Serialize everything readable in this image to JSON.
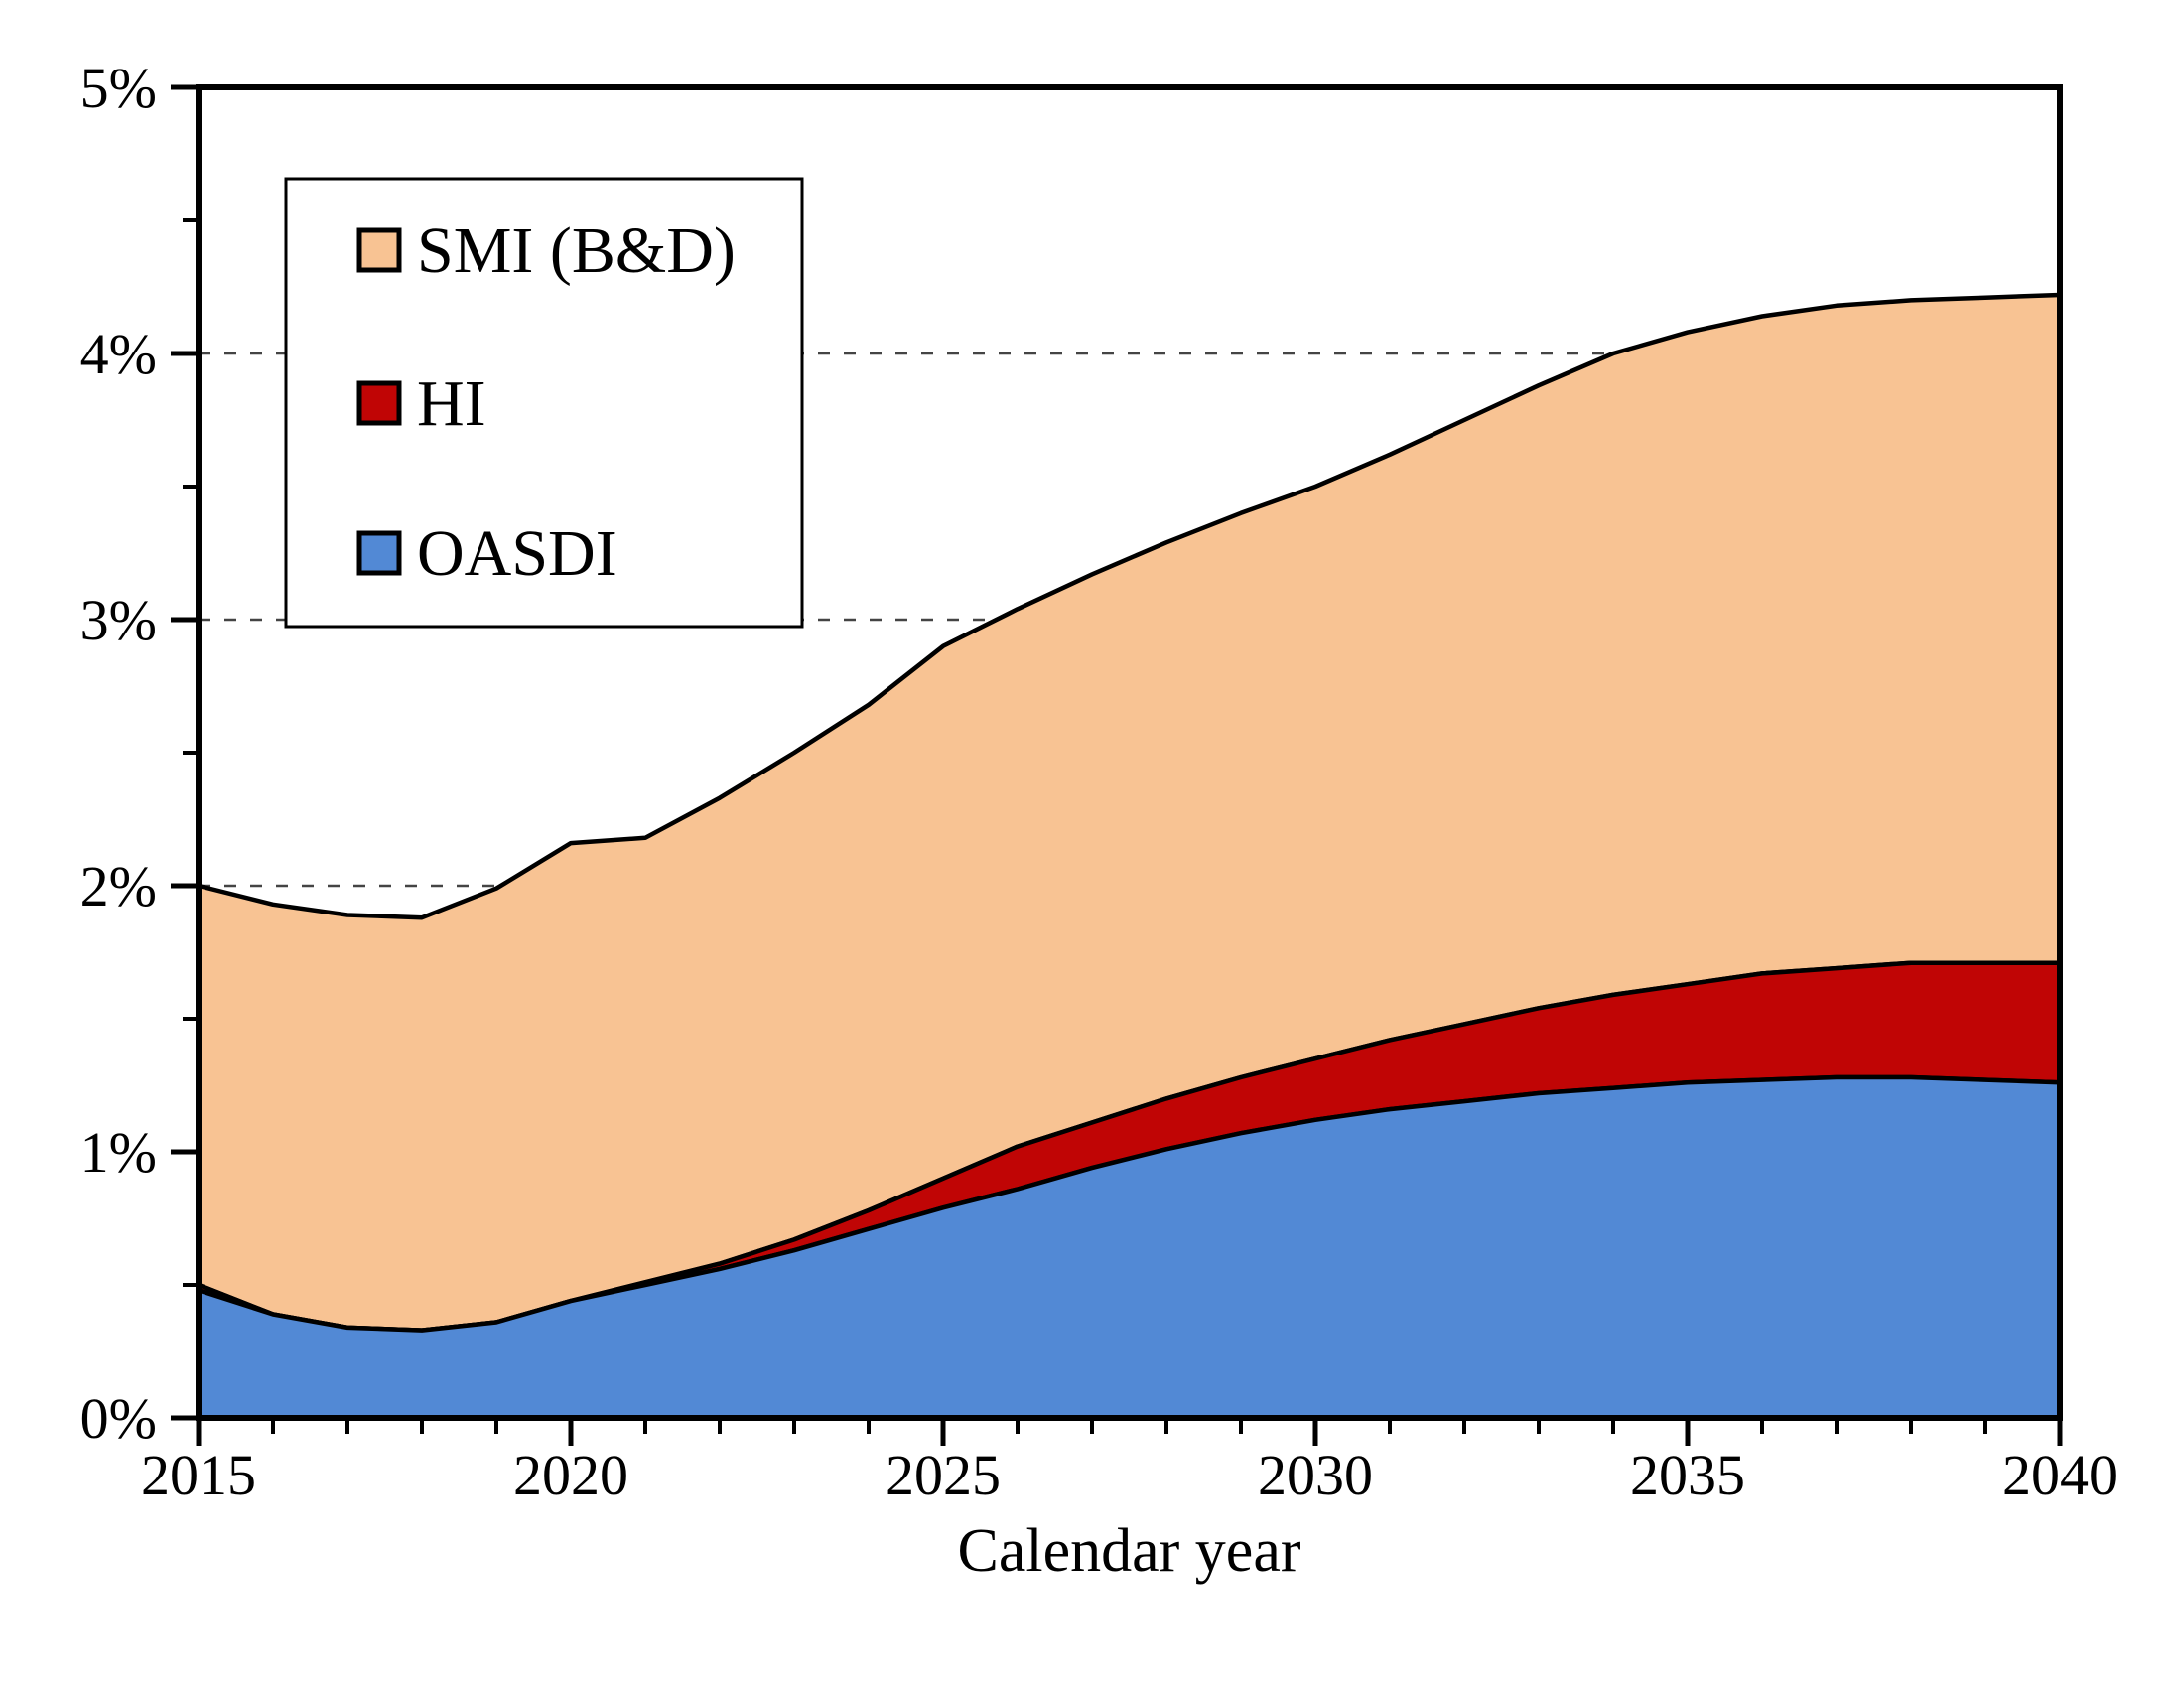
{
  "chart_data": {
    "type": "area",
    "stacked": true,
    "title": "",
    "xlabel": "Calendar year",
    "ylabel": "",
    "x_range": [
      2015,
      2040
    ],
    "ylim": [
      0,
      5
    ],
    "y_unit": "percent",
    "grid": "dashed horizontal major gridlines at 1%-4%, hidden where covered by areas",
    "legend_position": "upper-left inside plot, white box, order top to bottom: SMI (B&D), HI, OASDI",
    "x": [
      2015,
      2016,
      2017,
      2018,
      2019,
      2020,
      2021,
      2022,
      2023,
      2024,
      2025,
      2026,
      2027,
      2028,
      2029,
      2030,
      2031,
      2032,
      2033,
      2034,
      2035,
      2036,
      2037,
      2038,
      2039,
      2040
    ],
    "series": [
      {
        "name": "OASDI",
        "color": "#5289D5",
        "values": [
          0.48,
          0.39,
          0.34,
          0.33,
          0.36,
          0.44,
          0.5,
          0.56,
          0.63,
          0.71,
          0.79,
          0.86,
          0.94,
          1.01,
          1.07,
          1.12,
          1.16,
          1.19,
          1.22,
          1.24,
          1.26,
          1.27,
          1.28,
          1.28,
          1.27,
          1.26
        ]
      },
      {
        "name": "HI",
        "color": "#C00505",
        "values": [
          0.02,
          0.0,
          0.0,
          0.0,
          0.0,
          0.0,
          0.01,
          0.02,
          0.04,
          0.07,
          0.11,
          0.16,
          0.17,
          0.19,
          0.21,
          0.23,
          0.26,
          0.29,
          0.32,
          0.35,
          0.37,
          0.4,
          0.41,
          0.43,
          0.44,
          0.45
        ]
      },
      {
        "name": "SMI (B&D)",
        "color": "#F8C393",
        "values": [
          1.5,
          1.54,
          1.55,
          1.55,
          1.63,
          1.72,
          1.67,
          1.75,
          1.83,
          1.9,
          2.0,
          2.02,
          2.06,
          2.09,
          2.12,
          2.15,
          2.2,
          2.27,
          2.34,
          2.41,
          2.45,
          2.47,
          2.49,
          2.49,
          2.5,
          2.51
        ]
      }
    ],
    "stacked_totals": [
      2.0,
      1.93,
      1.89,
      1.88,
      1.99,
      2.16,
      2.18,
      2.33,
      2.5,
      2.68,
      2.9,
      3.04,
      3.17,
      3.29,
      3.4,
      3.5,
      3.62,
      3.75,
      3.88,
      4.0,
      4.08,
      4.14,
      4.18,
      4.2,
      4.21,
      4.22
    ],
    "legend_entries": [
      "SMI (B&D)",
      "HI",
      "OASDI"
    ],
    "y_tick_labels": [
      "0%",
      "1%",
      "2%",
      "3%",
      "4%",
      "5%"
    ],
    "y_minor_tick_step": 0.5,
    "x_tick_labels": [
      "2015",
      "2020",
      "2025",
      "2030",
      "2035",
      "2040"
    ],
    "x_minor_tick_step": 1,
    "outline_color": "#000000",
    "gridline_color": "#444444"
  }
}
